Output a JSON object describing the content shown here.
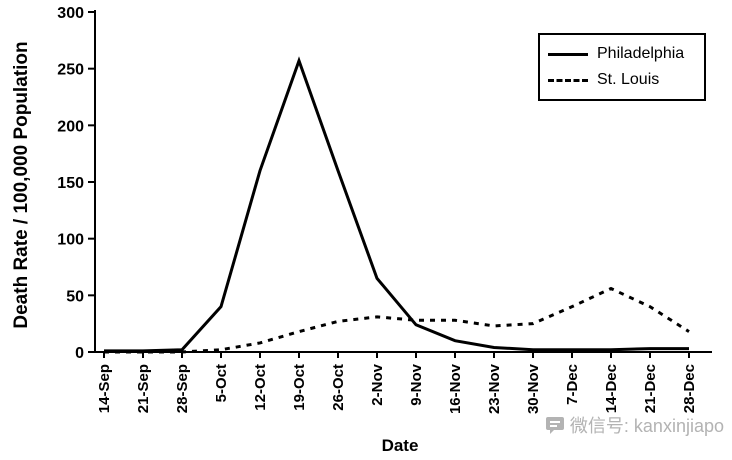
{
  "figure": {
    "background": "#ffffff",
    "axis_color": "#000000",
    "watermark": {
      "icon": "wechat-bubble-icon",
      "text": "微信号: kanxinjiapo",
      "color": "#b3b3b3"
    }
  },
  "chart_data": {
    "type": "line",
    "title": "",
    "xlabel": "Date",
    "ylabel": "Death Rate / 100,000 Population",
    "ylim": [
      0,
      300
    ],
    "yticks": [
      0,
      50,
      100,
      150,
      200,
      250,
      300
    ],
    "grid": false,
    "legend_position": "top-right",
    "categories": [
      "14-Sep",
      "21-Sep",
      "28-Sep",
      "5-Oct",
      "12-Oct",
      "19-Oct",
      "26-Oct",
      "2-Nov",
      "9-Nov",
      "16-Nov",
      "23-Nov",
      "30-Nov",
      "7-Dec",
      "14-Dec",
      "21-Dec",
      "28-Dec"
    ],
    "series": [
      {
        "name": "Philadelphia",
        "style": "solid",
        "color": "#000000",
        "values": [
          1,
          1,
          2,
          40,
          160,
          257,
          160,
          65,
          24,
          10,
          4,
          2,
          2,
          2,
          3,
          3
        ]
      },
      {
        "name": "St. Louis",
        "style": "dashed",
        "color": "#000000",
        "values": [
          0,
          0,
          0,
          2,
          8,
          18,
          27,
          31,
          28,
          28,
          23,
          25,
          40,
          56,
          40,
          18
        ]
      }
    ]
  }
}
